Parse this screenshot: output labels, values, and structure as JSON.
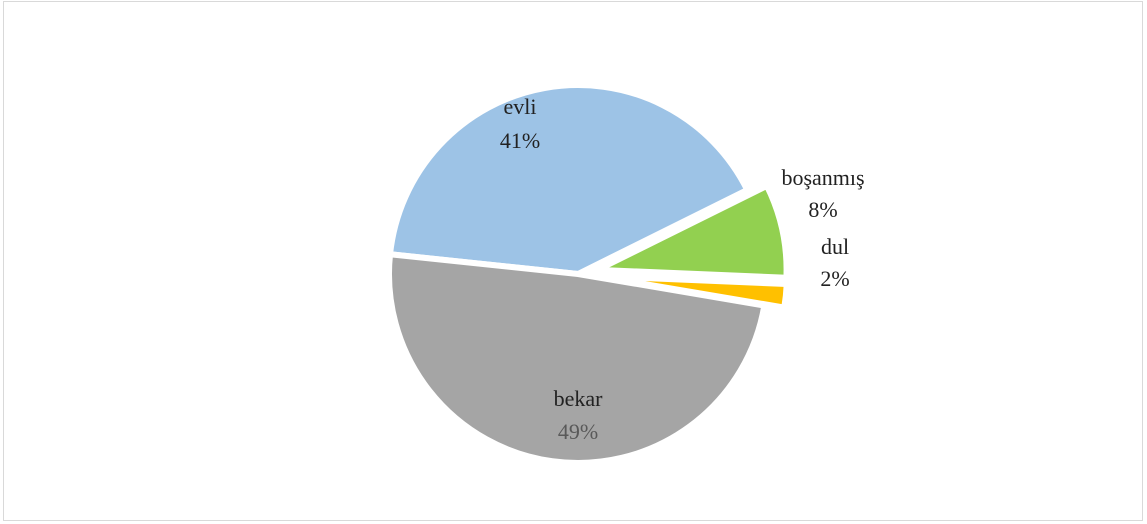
{
  "chart_data": {
    "type": "pie",
    "title": "",
    "slices": [
      {
        "label": "evli",
        "value": 41,
        "value_label": "41%",
        "color": "#9dc3e6",
        "exploded": false
      },
      {
        "label": "boşanmış",
        "value": 8,
        "value_label": "8%",
        "color": "#92d050",
        "exploded": true
      },
      {
        "label": "dul",
        "value": 2,
        "value_label": "2%",
        "color": "#ffc000",
        "exploded": true
      },
      {
        "label": "bekar",
        "value": 49,
        "value_label": "49%",
        "color": "#a5a5a5",
        "exploded": false
      }
    ],
    "legend": "none",
    "data_labels": "category and percentage"
  }
}
